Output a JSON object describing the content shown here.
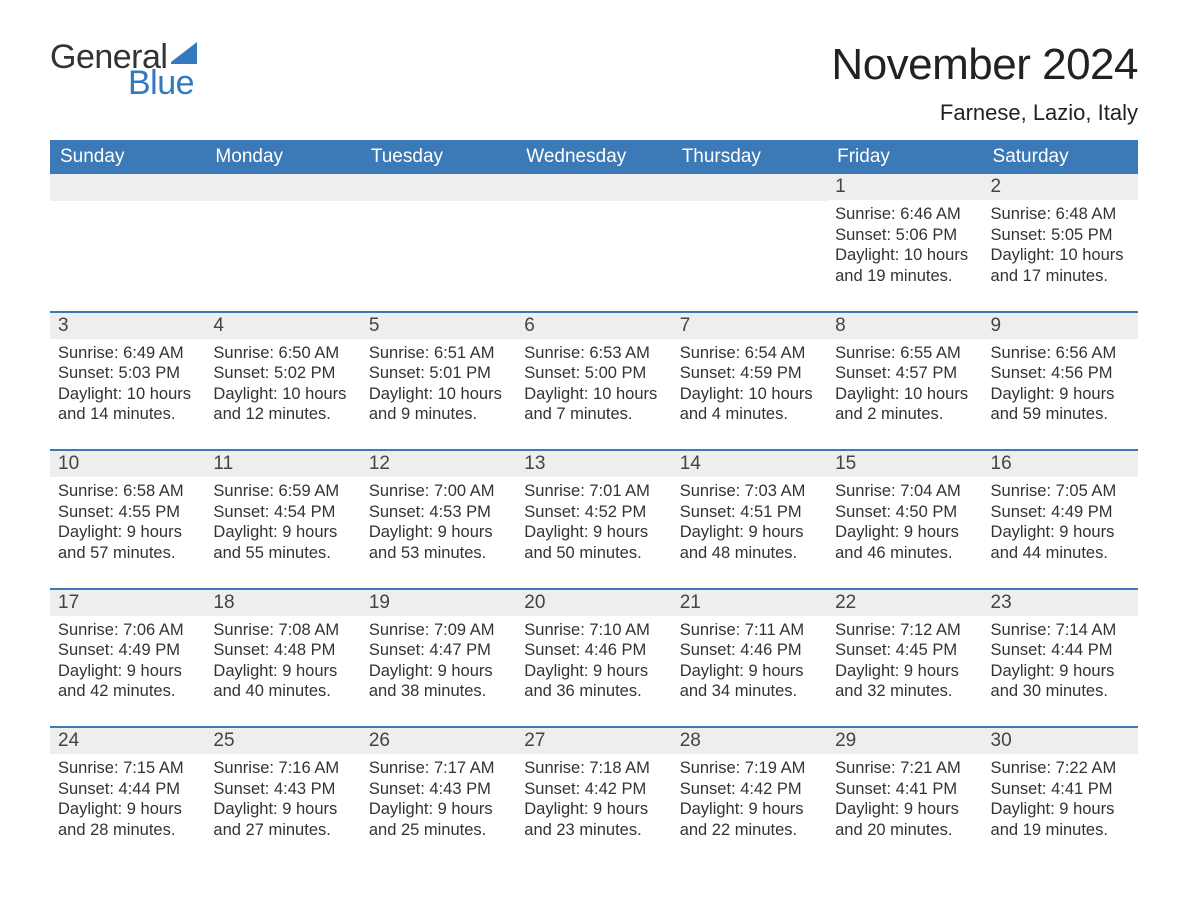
{
  "logo": {
    "word1": "General",
    "word2": "Blue",
    "shape_color": "#3478bd"
  },
  "title": "November 2024",
  "location": "Farnese, Lazio, Italy",
  "colors": {
    "header_bg": "#3b79b7",
    "header_text": "#ffffff",
    "strip_bg": "#eeeeee",
    "border": "#3b79b7",
    "body_text": "#333333"
  },
  "fonts": {
    "title_size_pt": 33,
    "location_size_pt": 17,
    "weekday_size_pt": 14,
    "daynum_size_pt": 14,
    "body_size_pt": 12
  },
  "weekdays": [
    "Sunday",
    "Monday",
    "Tuesday",
    "Wednesday",
    "Thursday",
    "Friday",
    "Saturday"
  ],
  "weeks": [
    [
      null,
      null,
      null,
      null,
      null,
      {
        "day": "1",
        "sunrise": "6:46 AM",
        "sunset": "5:06 PM",
        "daylight1": "10 hours",
        "daylight2": "and 19 minutes."
      },
      {
        "day": "2",
        "sunrise": "6:48 AM",
        "sunset": "5:05 PM",
        "daylight1": "10 hours",
        "daylight2": "and 17 minutes."
      }
    ],
    [
      {
        "day": "3",
        "sunrise": "6:49 AM",
        "sunset": "5:03 PM",
        "daylight1": "10 hours",
        "daylight2": "and 14 minutes."
      },
      {
        "day": "4",
        "sunrise": "6:50 AM",
        "sunset": "5:02 PM",
        "daylight1": "10 hours",
        "daylight2": "and 12 minutes."
      },
      {
        "day": "5",
        "sunrise": "6:51 AM",
        "sunset": "5:01 PM",
        "daylight1": "10 hours",
        "daylight2": "and 9 minutes."
      },
      {
        "day": "6",
        "sunrise": "6:53 AM",
        "sunset": "5:00 PM",
        "daylight1": "10 hours",
        "daylight2": "and 7 minutes."
      },
      {
        "day": "7",
        "sunrise": "6:54 AM",
        "sunset": "4:59 PM",
        "daylight1": "10 hours",
        "daylight2": "and 4 minutes."
      },
      {
        "day": "8",
        "sunrise": "6:55 AM",
        "sunset": "4:57 PM",
        "daylight1": "10 hours",
        "daylight2": "and 2 minutes."
      },
      {
        "day": "9",
        "sunrise": "6:56 AM",
        "sunset": "4:56 PM",
        "daylight1": "9 hours",
        "daylight2": "and 59 minutes."
      }
    ],
    [
      {
        "day": "10",
        "sunrise": "6:58 AM",
        "sunset": "4:55 PM",
        "daylight1": "9 hours",
        "daylight2": "and 57 minutes."
      },
      {
        "day": "11",
        "sunrise": "6:59 AM",
        "sunset": "4:54 PM",
        "daylight1": "9 hours",
        "daylight2": "and 55 minutes."
      },
      {
        "day": "12",
        "sunrise": "7:00 AM",
        "sunset": "4:53 PM",
        "daylight1": "9 hours",
        "daylight2": "and 53 minutes."
      },
      {
        "day": "13",
        "sunrise": "7:01 AM",
        "sunset": "4:52 PM",
        "daylight1": "9 hours",
        "daylight2": "and 50 minutes."
      },
      {
        "day": "14",
        "sunrise": "7:03 AM",
        "sunset": "4:51 PM",
        "daylight1": "9 hours",
        "daylight2": "and 48 minutes."
      },
      {
        "day": "15",
        "sunrise": "7:04 AM",
        "sunset": "4:50 PM",
        "daylight1": "9 hours",
        "daylight2": "and 46 minutes."
      },
      {
        "day": "16",
        "sunrise": "7:05 AM",
        "sunset": "4:49 PM",
        "daylight1": "9 hours",
        "daylight2": "and 44 minutes."
      }
    ],
    [
      {
        "day": "17",
        "sunrise": "7:06 AM",
        "sunset": "4:49 PM",
        "daylight1": "9 hours",
        "daylight2": "and 42 minutes."
      },
      {
        "day": "18",
        "sunrise": "7:08 AM",
        "sunset": "4:48 PM",
        "daylight1": "9 hours",
        "daylight2": "and 40 minutes."
      },
      {
        "day": "19",
        "sunrise": "7:09 AM",
        "sunset": "4:47 PM",
        "daylight1": "9 hours",
        "daylight2": "and 38 minutes."
      },
      {
        "day": "20",
        "sunrise": "7:10 AM",
        "sunset": "4:46 PM",
        "daylight1": "9 hours",
        "daylight2": "and 36 minutes."
      },
      {
        "day": "21",
        "sunrise": "7:11 AM",
        "sunset": "4:46 PM",
        "daylight1": "9 hours",
        "daylight2": "and 34 minutes."
      },
      {
        "day": "22",
        "sunrise": "7:12 AM",
        "sunset": "4:45 PM",
        "daylight1": "9 hours",
        "daylight2": "and 32 minutes."
      },
      {
        "day": "23",
        "sunrise": "7:14 AM",
        "sunset": "4:44 PM",
        "daylight1": "9 hours",
        "daylight2": "and 30 minutes."
      }
    ],
    [
      {
        "day": "24",
        "sunrise": "7:15 AM",
        "sunset": "4:44 PM",
        "daylight1": "9 hours",
        "daylight2": "and 28 minutes."
      },
      {
        "day": "25",
        "sunrise": "7:16 AM",
        "sunset": "4:43 PM",
        "daylight1": "9 hours",
        "daylight2": "and 27 minutes."
      },
      {
        "day": "26",
        "sunrise": "7:17 AM",
        "sunset": "4:43 PM",
        "daylight1": "9 hours",
        "daylight2": "and 25 minutes."
      },
      {
        "day": "27",
        "sunrise": "7:18 AM",
        "sunset": "4:42 PM",
        "daylight1": "9 hours",
        "daylight2": "and 23 minutes."
      },
      {
        "day": "28",
        "sunrise": "7:19 AM",
        "sunset": "4:42 PM",
        "daylight1": "9 hours",
        "daylight2": "and 22 minutes."
      },
      {
        "day": "29",
        "sunrise": "7:21 AM",
        "sunset": "4:41 PM",
        "daylight1": "9 hours",
        "daylight2": "and 20 minutes."
      },
      {
        "day": "30",
        "sunrise": "7:22 AM",
        "sunset": "4:41 PM",
        "daylight1": "9 hours",
        "daylight2": "and 19 minutes."
      }
    ]
  ],
  "labels": {
    "sunrise": "Sunrise: ",
    "sunset": "Sunset: ",
    "daylight": "Daylight: "
  }
}
